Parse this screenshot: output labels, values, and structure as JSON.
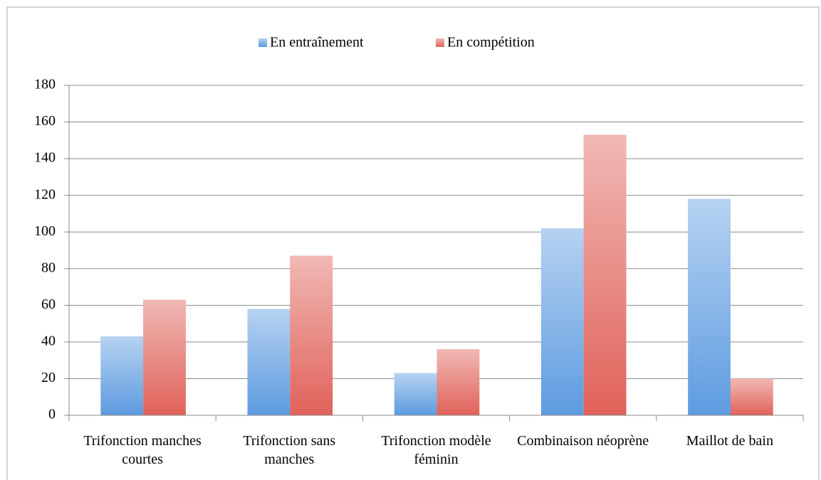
{
  "chart_data": {
    "type": "bar",
    "categories": [
      "Trifonction manches courtes",
      "Trifonction sans manches",
      "Trifonction modèle féminin",
      "Combinaison néoprène",
      "Maillot de bain"
    ],
    "series": [
      {
        "name": "En entraînement",
        "color": "#5d9be0",
        "values": [
          43,
          58,
          23,
          102,
          118
        ]
      },
      {
        "name": "En compétition",
        "color": "#e0625a",
        "values": [
          63,
          87,
          36,
          153,
          20
        ]
      }
    ],
    "ylim": [
      0,
      180
    ],
    "yticks": [
      0,
      20,
      40,
      60,
      80,
      100,
      120,
      140,
      160,
      180
    ],
    "grid": true,
    "legend": "top"
  }
}
